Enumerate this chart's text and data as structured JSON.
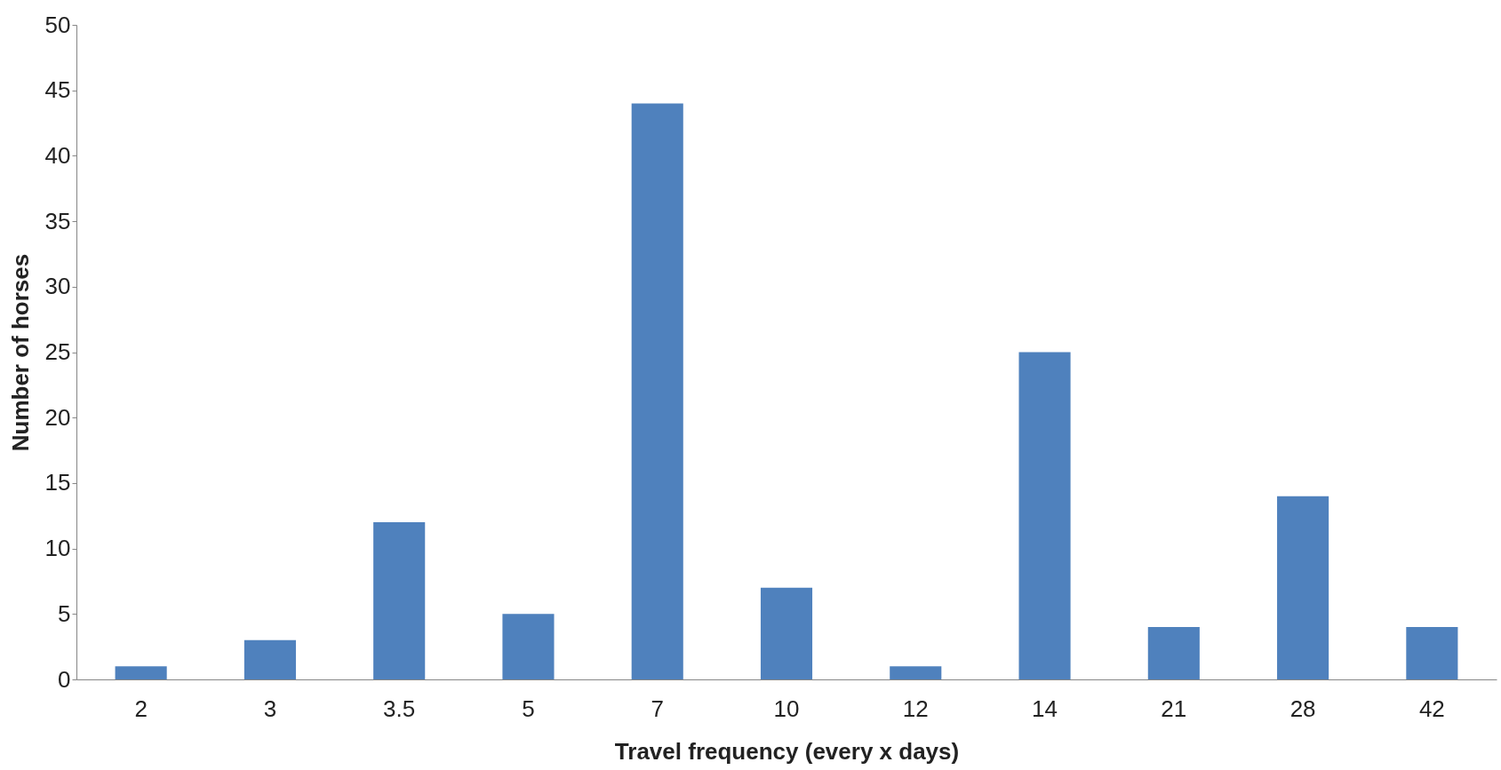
{
  "chart_data": {
    "type": "bar",
    "xlabel": "Travel frequency (every x days)",
    "ylabel": "Number of horses",
    "categories": [
      "2",
      "3",
      "3.5",
      "5",
      "7",
      "10",
      "12",
      "14",
      "21",
      "28",
      "42"
    ],
    "values": [
      1,
      3,
      12,
      5,
      44,
      7,
      1,
      25,
      4,
      14,
      4
    ],
    "color": "#4f81bd",
    "ylim": [
      0,
      50
    ],
    "yticks": [
      0,
      5,
      10,
      15,
      20,
      25,
      30,
      35,
      40,
      45,
      50
    ],
    "grid": false
  }
}
